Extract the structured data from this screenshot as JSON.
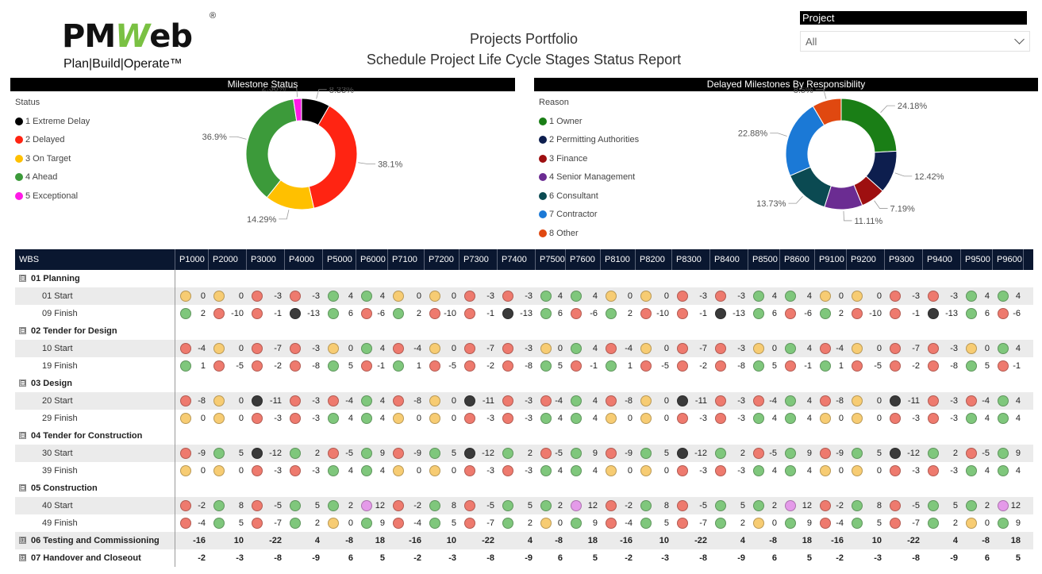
{
  "header": {
    "logo_text": "PMWeb",
    "logo_reg": "®",
    "logo_tagline": "Plan|Build|Operate™",
    "title_line1": "Projects Portfolio",
    "title_line2": "Schedule Project Life Cycle Stages Status Report"
  },
  "slicer": {
    "label": "Project",
    "value": "All"
  },
  "colors": {
    "extreme": "#3a3a3a",
    "delayed": "#ee7a6e",
    "on_target": "#f7cc73",
    "ahead": "#7fc77c",
    "exceptional": "#e49ae9",
    "header_bg": "#0a1730"
  },
  "milestone_chart": {
    "panel_title": "Milestone Status",
    "legend_title": "Status",
    "chart_data": {
      "type": "pie",
      "donut": true,
      "categories": [
        "1 Extreme Delay",
        "2 Delayed",
        "3 On Target",
        "4 Ahead",
        "5 Exceptional"
      ],
      "values": [
        8.33,
        38.1,
        14.29,
        36.9,
        2.38
      ],
      "labels": [
        "8.33%",
        "38.1%",
        "14.29%",
        "36.9%",
        "2.38%"
      ],
      "colors": [
        "#000000",
        "#ff2412",
        "#ffc000",
        "#3c9a3a",
        "#ff19e6"
      ]
    }
  },
  "responsibility_chart": {
    "panel_title": "Delayed Milestones By Responsibility",
    "legend_title": "Reason",
    "chart_data": {
      "type": "pie",
      "donut": true,
      "categories": [
        "1 Owner",
        "2 Permitting Authorities",
        "3 Finance",
        "4 Senior Management",
        "6 Consultant",
        "7 Contractor",
        "8 Other"
      ],
      "values": [
        24.18,
        12.42,
        7.19,
        11.11,
        13.73,
        22.88,
        8.5
      ],
      "labels": [
        "24.18%",
        "12.42%",
        "7.19%",
        "11.11%",
        "13.73%",
        "22.88%",
        "8.5%"
      ],
      "colors": [
        "#1a7e16",
        "#0d1e4e",
        "#9e0f10",
        "#6b2c92",
        "#0b4a52",
        "#1b79d6",
        "#e04810"
      ]
    }
  },
  "table": {
    "wbs_header": "WBS",
    "columns": [
      "P1000",
      "P2000",
      "P3000",
      "P4000",
      "P5000",
      "P6000",
      "P7100",
      "P7200",
      "P7300",
      "P7400",
      "P7500",
      "P7600",
      "P8100",
      "P8200",
      "P8300",
      "P8400",
      "P8500",
      "P8600",
      "P9100",
      "P9200",
      "P9300",
      "P9400",
      "P9500",
      "P9600"
    ],
    "groups": [
      {
        "label": "01 Planning",
        "expand": "⊟",
        "rows": [
          {
            "label": "01 Start",
            "status": [
              "O",
              "O",
              "D",
              "D",
              "A",
              "A",
              "O",
              "O",
              "D",
              "D",
              "A",
              "A",
              "O",
              "O",
              "D",
              "D",
              "A",
              "A",
              "O",
              "O",
              "D",
              "D",
              "A",
              "A"
            ],
            "values": [
              0,
              0,
              -3,
              -3,
              4,
              4,
              0,
              0,
              -3,
              -3,
              4,
              4,
              0,
              0,
              -3,
              -3,
              4,
              4,
              0,
              0,
              -3,
              -3,
              4,
              4
            ]
          },
          {
            "label": "09 Finish",
            "status": [
              "A",
              "D",
              "D",
              "E",
              "A",
              "D",
              "A",
              "D",
              "D",
              "E",
              "A",
              "D",
              "A",
              "D",
              "D",
              "E",
              "A",
              "D",
              "A",
              "D",
              "D",
              "E",
              "A",
              "D"
            ],
            "values": [
              2,
              -10,
              -1,
              -13,
              6,
              -6,
              2,
              -10,
              -1,
              -13,
              6,
              -6,
              2,
              -10,
              -1,
              -13,
              6,
              -6,
              2,
              -10,
              -1,
              -13,
              6,
              -6
            ]
          }
        ]
      },
      {
        "label": "02 Tender for Design",
        "expand": "⊟",
        "rows": [
          {
            "label": "10 Start",
            "status": [
              "D",
              "O",
              "D",
              "D",
              "O",
              "A",
              "D",
              "O",
              "D",
              "D",
              "O",
              "A",
              "D",
              "O",
              "D",
              "D",
              "O",
              "A",
              "D",
              "O",
              "D",
              "D",
              "O",
              "A"
            ],
            "values": [
              -4,
              0,
              -7,
              -3,
              0,
              4,
              -4,
              0,
              -7,
              -3,
              0,
              4,
              -4,
              0,
              -7,
              -3,
              0,
              4,
              -4,
              0,
              -7,
              -3,
              0,
              4
            ]
          },
          {
            "label": "19 Finish",
            "status": [
              "A",
              "D",
              "D",
              "D",
              "A",
              "D",
              "A",
              "D",
              "D",
              "D",
              "A",
              "D",
              "A",
              "D",
              "D",
              "D",
              "A",
              "D",
              "A",
              "D",
              "D",
              "D",
              "A",
              "D"
            ],
            "values": [
              1,
              -5,
              -2,
              -8,
              5,
              -1,
              1,
              -5,
              -2,
              -8,
              5,
              -1,
              1,
              -5,
              -2,
              -8,
              5,
              -1,
              1,
              -5,
              -2,
              -8,
              5,
              -1
            ]
          }
        ]
      },
      {
        "label": "03 Design",
        "expand": "⊟",
        "rows": [
          {
            "label": "20 Start",
            "status": [
              "D",
              "O",
              "E",
              "D",
              "D",
              "A",
              "D",
              "O",
              "E",
              "D",
              "D",
              "A",
              "D",
              "O",
              "E",
              "D",
              "D",
              "A",
              "D",
              "O",
              "E",
              "D",
              "D",
              "A"
            ],
            "values": [
              -8,
              0,
              -11,
              -3,
              -4,
              4,
              -8,
              0,
              -11,
              -3,
              -4,
              4,
              -8,
              0,
              -11,
              -3,
              -4,
              4,
              -8,
              0,
              -11,
              -3,
              -4,
              4
            ]
          },
          {
            "label": "29 Finish",
            "status": [
              "O",
              "O",
              "D",
              "D",
              "A",
              "A",
              "O",
              "O",
              "D",
              "D",
              "A",
              "A",
              "O",
              "O",
              "D",
              "D",
              "A",
              "A",
              "O",
              "O",
              "D",
              "D",
              "A",
              "A"
            ],
            "values": [
              0,
              0,
              -3,
              -3,
              4,
              4,
              0,
              0,
              -3,
              -3,
              4,
              4,
              0,
              0,
              -3,
              -3,
              4,
              4,
              0,
              0,
              -3,
              -3,
              4,
              4
            ]
          }
        ]
      },
      {
        "label": "04 Tender for Construction",
        "expand": "⊟",
        "rows": [
          {
            "label": "30 Start",
            "status": [
              "D",
              "A",
              "E",
              "A",
              "D",
              "A",
              "D",
              "A",
              "E",
              "A",
              "D",
              "A",
              "D",
              "A",
              "E",
              "A",
              "D",
              "A",
              "D",
              "A",
              "E",
              "A",
              "D",
              "A"
            ],
            "values": [
              -9,
              5,
              -12,
              2,
              -5,
              9,
              -9,
              5,
              -12,
              2,
              -5,
              9,
              -9,
              5,
              -12,
              2,
              -5,
              9,
              -9,
              5,
              -12,
              2,
              -5,
              9
            ]
          },
          {
            "label": "39 Finish",
            "status": [
              "O",
              "O",
              "D",
              "D",
              "A",
              "A",
              "O",
              "O",
              "D",
              "D",
              "A",
              "A",
              "O",
              "O",
              "D",
              "D",
              "A",
              "A",
              "O",
              "O",
              "D",
              "D",
              "A",
              "A"
            ],
            "values": [
              0,
              0,
              -3,
              -3,
              4,
              4,
              0,
              0,
              -3,
              -3,
              4,
              4,
              0,
              0,
              -3,
              -3,
              4,
              4,
              0,
              0,
              -3,
              -3,
              4,
              4
            ]
          }
        ]
      },
      {
        "label": "05 Construction",
        "expand": "⊟",
        "rows": [
          {
            "label": "40 Start",
            "status": [
              "D",
              "A",
              "D",
              "A",
              "A",
              "X",
              "D",
              "A",
              "D",
              "A",
              "A",
              "X",
              "D",
              "A",
              "D",
              "A",
              "A",
              "X",
              "D",
              "A",
              "D",
              "A",
              "A",
              "X"
            ],
            "values": [
              -2,
              8,
              -5,
              5,
              2,
              12,
              -2,
              8,
              -5,
              5,
              2,
              12,
              -2,
              8,
              -5,
              5,
              2,
              12,
              -2,
              8,
              -5,
              5,
              2,
              12
            ]
          },
          {
            "label": "49 Finish",
            "status": [
              "D",
              "A",
              "D",
              "A",
              "O",
              "A",
              "D",
              "A",
              "D",
              "A",
              "O",
              "A",
              "D",
              "A",
              "D",
              "A",
              "O",
              "A",
              "D",
              "A",
              "D",
              "A",
              "O",
              "A"
            ],
            "values": [
              -4,
              5,
              -7,
              2,
              0,
              9,
              -4,
              5,
              -7,
              2,
              0,
              9,
              -4,
              5,
              -7,
              2,
              0,
              9,
              -4,
              5,
              -7,
              2,
              0,
              9
            ]
          }
        ]
      },
      {
        "label": "06 Testing and Commissioning",
        "expand": "⊞",
        "totals": [
          -16,
          10,
          -22,
          4,
          -8,
          18,
          -16,
          10,
          -22,
          4,
          -8,
          18,
          -16,
          10,
          -22,
          4,
          -8,
          18,
          -16,
          10,
          -22,
          4,
          -8,
          18
        ]
      },
      {
        "label": "07 Handover and Closeout",
        "expand": "⊞",
        "totals": [
          -2,
          -3,
          -8,
          -9,
          6,
          5,
          -2,
          -3,
          -8,
          -9,
          6,
          5,
          -2,
          -3,
          -8,
          -9,
          6,
          5,
          -2,
          -3,
          -8,
          -9,
          6,
          5
        ]
      }
    ]
  }
}
